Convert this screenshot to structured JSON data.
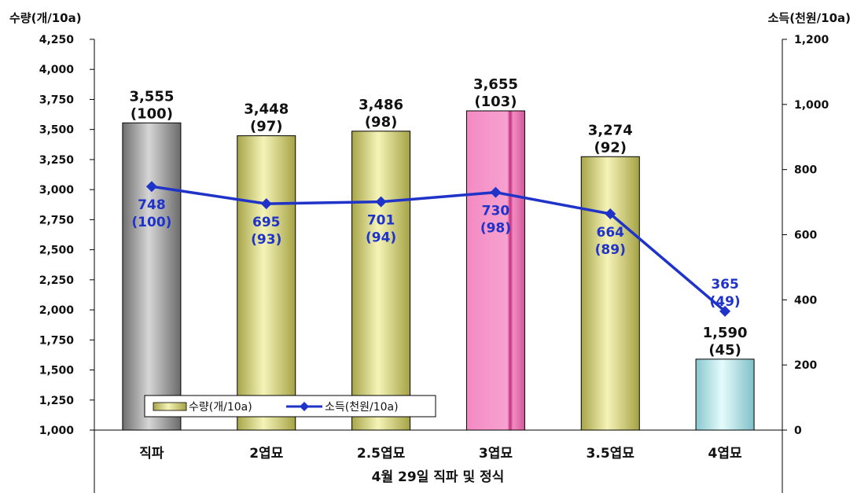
{
  "chart_data": {
    "type": "bar",
    "title": "",
    "xlabel": "4월 29일 직파 및 정식",
    "ylabel": "수량(개/10a)",
    "y2label": "소득(천원/10a)",
    "ylim": [
      1000,
      4250
    ],
    "y2lim": [
      0,
      1200
    ],
    "y_ticks": [
      "1,000",
      "1,250",
      "1,500",
      "1,750",
      "2,000",
      "2,250",
      "2,500",
      "2,750",
      "3,000",
      "3,250",
      "3,500",
      "3,750",
      "4,000",
      "4,250"
    ],
    "y2_ticks": [
      "0",
      "200",
      "400",
      "600",
      "800",
      "1,000",
      "1,200"
    ],
    "categories": [
      "직파",
      "2엽묘",
      "2.5엽묘",
      "3엽묘",
      "3.5엽묘",
      "4엽묘"
    ],
    "legend_position": "bottom-left",
    "series": [
      {
        "name": "수량(개/10a)",
        "kind": "bar",
        "axis": "left",
        "values": [
          3555,
          3448,
          3486,
          3655,
          3274,
          1590
        ],
        "labels": [
          "3,555",
          "3,448",
          "3,486",
          "3,655",
          "3,274",
          "1,590"
        ],
        "index_labels": [
          "(100)",
          "(97)",
          "(98)",
          "(103)",
          "(92)",
          "(45)"
        ]
      },
      {
        "name": "소득(천원/10a)",
        "kind": "line",
        "axis": "right",
        "color": "#1f33c8",
        "values": [
          748,
          695,
          701,
          730,
          664,
          365
        ],
        "labels": [
          "748",
          "695",
          "701",
          "730",
          "664",
          "365"
        ],
        "index_labels": [
          "(100)",
          "(93)",
          "(94)",
          "(98)",
          "(89)",
          "(49)"
        ]
      }
    ],
    "bar_colors": [
      "#9a9a9a",
      "#e6e48a",
      "#e6e48a",
      "#f58cc4",
      "#e6e48a",
      "#bfeff2"
    ]
  }
}
